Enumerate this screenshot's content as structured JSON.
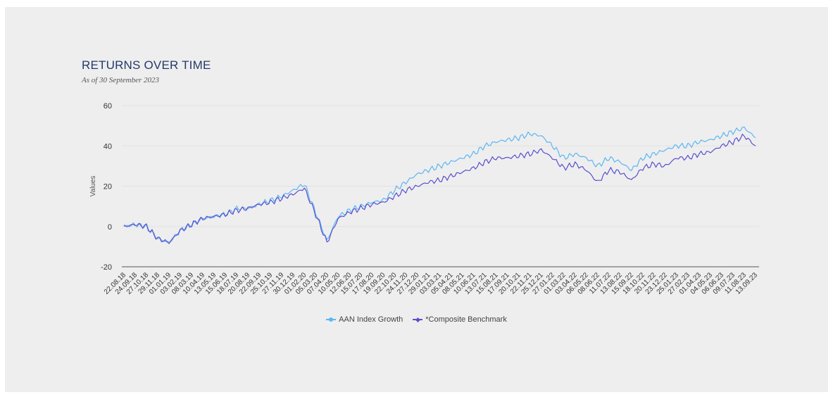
{
  "header": {
    "title": "RETURNS OVER TIME",
    "subtitle": "As of 30 September 2023"
  },
  "chart_data": {
    "type": "line",
    "title": "RETURNS OVER TIME",
    "subtitle": "As of 30 September 2023",
    "xlabel": "",
    "ylabel": "Values",
    "ylim": [
      -20,
      60
    ],
    "yticks": [
      -20,
      0,
      20,
      40,
      60
    ],
    "grid": "horizontal",
    "legend_position": "bottom",
    "x": [
      "22.08.18",
      "24.09.18",
      "27.10.18",
      "29.11.18",
      "01.01.19",
      "03.02.19",
      "08.03.19",
      "10.04.19",
      "13.05.19",
      "15.06.19",
      "18.07.19",
      "20.08.19",
      "22.09.19",
      "25.10.19",
      "27.11.19",
      "30.12.19",
      "01.02.20",
      "05.03.20",
      "07.04.20",
      "10.05.20",
      "12.06.20",
      "15.07.20",
      "17.08.20",
      "19.09.20",
      "22.10.20",
      "24.11.20",
      "27.12.20",
      "29.01.21",
      "03.03.21",
      "05.04.21",
      "08.05.21",
      "10.06.21",
      "13.07.21",
      "15.08.21",
      "17.09.21",
      "20.10.21",
      "22.11.21",
      "25.12.21",
      "27.01.22",
      "01.03.22",
      "03.04.22",
      "06.05.22",
      "08.06.22",
      "11.07.22",
      "13.08.22",
      "15.09.22",
      "18.10.22",
      "20.11.22",
      "23.12.22",
      "25.01.23",
      "27.02.23",
      "01.04.23",
      "04.05.23",
      "06.06.23",
      "09.07.23",
      "11.08.23",
      "13.09.23"
    ],
    "series": [
      {
        "name": "AAN Index Growth",
        "color": "#5bb6f3",
        "marker": "circle",
        "values": [
          0,
          1,
          0,
          -6,
          -8,
          -2,
          1,
          4,
          5,
          6,
          9,
          9,
          11,
          13,
          15,
          18,
          21,
          7,
          -7,
          5,
          8,
          10,
          12,
          13,
          18,
          22,
          26,
          28,
          30,
          32,
          34,
          36,
          40,
          42,
          43,
          44,
          46,
          45,
          40,
          34,
          36,
          34,
          30,
          34,
          32,
          28,
          34,
          36,
          38,
          40,
          40,
          42,
          43,
          45,
          47,
          49,
          44
        ]
      },
      {
        "name": "*Composite Benchmark",
        "color": "#5a4fcf",
        "marker": "diamond",
        "values": [
          0,
          1,
          0,
          -6,
          -8,
          -2,
          1,
          4,
          5,
          6,
          8,
          9,
          11,
          12,
          14,
          16,
          19,
          6,
          -8,
          4,
          7,
          9,
          11,
          12,
          15,
          18,
          20,
          22,
          23,
          25,
          27,
          29,
          32,
          34,
          34,
          35,
          36,
          38,
          34,
          29,
          31,
          28,
          22,
          28,
          27,
          23,
          29,
          31,
          30,
          34,
          34,
          36,
          37,
          40,
          42,
          45,
          40
        ]
      }
    ]
  }
}
